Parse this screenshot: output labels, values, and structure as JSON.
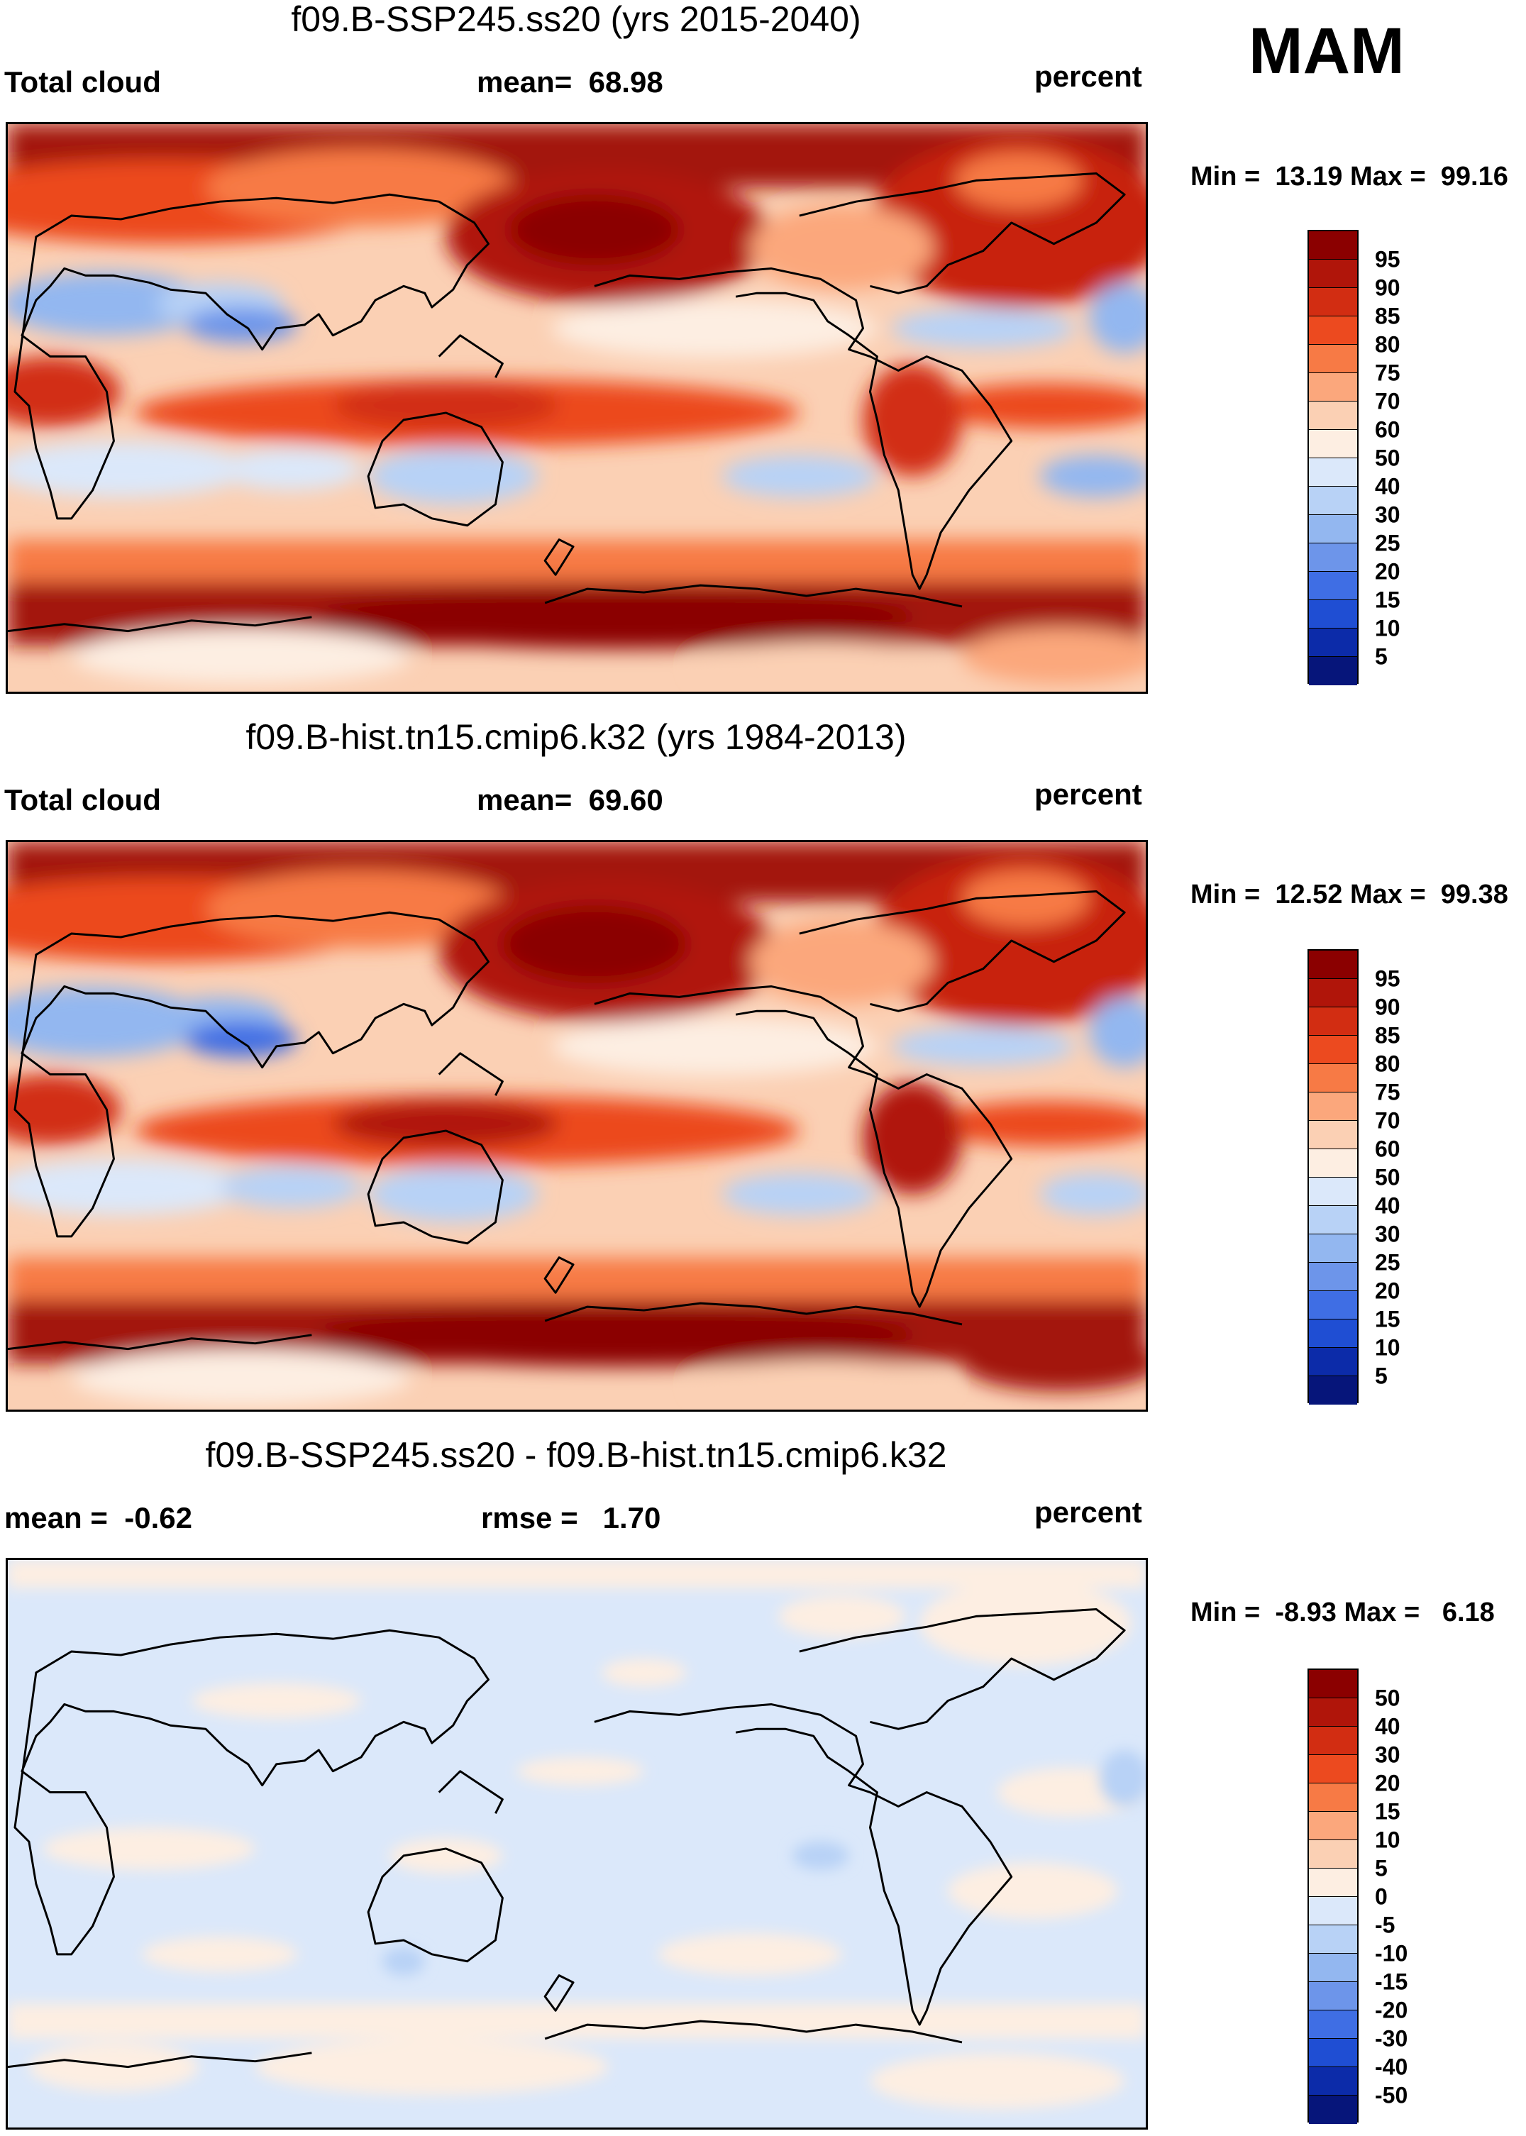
{
  "season": "MAM",
  "units": "percent",
  "panels": [
    {
      "title": "f09.B-SSP245.ss20 (yrs 2015-2040)",
      "left_label": "Total cloud",
      "mean_label": "mean=",
      "mean_value": "68.98",
      "min_label": "Min =",
      "min_value": "13.19",
      "max_label": "Max =",
      "max_value": "99.16",
      "colorbar_labels": [
        "95",
        "90",
        "85",
        "80",
        "75",
        "70",
        "60",
        "50",
        "40",
        "30",
        "25",
        "20",
        "15",
        "10",
        "5"
      ],
      "colorbar_colors": [
        "#8b0000",
        "#b0150a",
        "#d22d12",
        "#ec4a1f",
        "#f77a45",
        "#fba77c",
        "#fbd0b4",
        "#fdeee2",
        "#dbe8fa",
        "#b8d2f6",
        "#93b7f0",
        "#6d95ea",
        "#3f6ee4",
        "#1f4ed3",
        "#0c2ba9",
        "#06157a"
      ]
    },
    {
      "title": "f09.B-hist.tn15.cmip6.k32 (yrs 1984-2013)",
      "left_label": "Total cloud",
      "mean_label": "mean=",
      "mean_value": "69.60",
      "min_label": "Min =",
      "min_value": "12.52",
      "max_label": "Max =",
      "max_value": "99.38",
      "colorbar_labels": [
        "95",
        "90",
        "85",
        "80",
        "75",
        "70",
        "60",
        "50",
        "40",
        "30",
        "25",
        "20",
        "15",
        "10",
        "5"
      ],
      "colorbar_colors": [
        "#8b0000",
        "#b0150a",
        "#d22d12",
        "#ec4a1f",
        "#f77a45",
        "#fba77c",
        "#fbd0b4",
        "#fdeee2",
        "#dbe8fa",
        "#b8d2f6",
        "#93b7f0",
        "#6d95ea",
        "#3f6ee4",
        "#1f4ed3",
        "#0c2ba9",
        "#06157a"
      ]
    },
    {
      "title": "f09.B-SSP245.ss20 - f09.B-hist.tn15.cmip6.k32",
      "left_label": "mean =",
      "left_value": "-0.62",
      "mean_label": "rmse =",
      "mean_value": "1.70",
      "min_label": "Min =",
      "min_value": "-8.93",
      "max_label": "Max =",
      "max_value": "6.18",
      "colorbar_labels": [
        "50",
        "40",
        "30",
        "20",
        "15",
        "10",
        "5",
        "0",
        "-5",
        "-10",
        "-15",
        "-20",
        "-30",
        "-40",
        "-50"
      ],
      "colorbar_colors": [
        "#8b0000",
        "#b0150a",
        "#d22d12",
        "#ec4a1f",
        "#f77a45",
        "#fba77c",
        "#fbd0b4",
        "#fdeee2",
        "#dbe8fa",
        "#b8d2f6",
        "#93b7f0",
        "#6d95ea",
        "#3f6ee4",
        "#1f4ed3",
        "#0c2ba9",
        "#06157a"
      ]
    }
  ]
}
